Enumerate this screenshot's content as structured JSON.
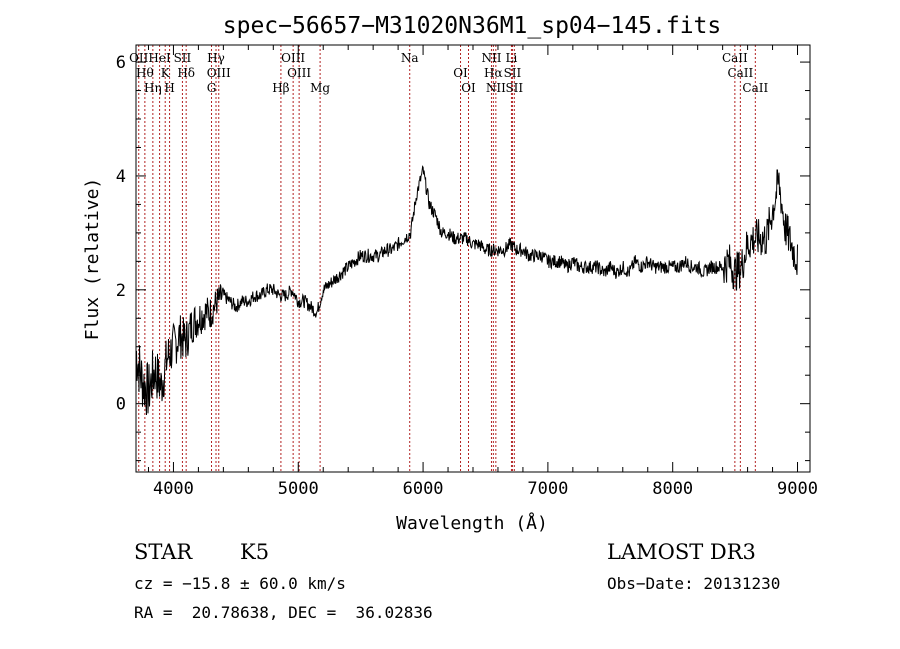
{
  "chart_data": {
    "type": "line",
    "title": "spec−56657−M31020N36M1_sp04−145.fits",
    "xlabel": "Wavelength (Å)",
    "ylabel": "Flux (relative)",
    "xlim": [
      3700,
      9100
    ],
    "ylim": [
      -1.2,
      6.3
    ],
    "xticks": [
      4000,
      5000,
      6000,
      7000,
      8000,
      9000
    ],
    "yticks": [
      0,
      2,
      4,
      6
    ],
    "grid": false,
    "series": [
      {
        "color": "#000000",
        "x": [
          3700,
          3750,
          3800,
          3850,
          3900,
          3950,
          4000,
          4050,
          4100,
          4150,
          4200,
          4250,
          4300,
          4350,
          4400,
          4450,
          4500,
          4550,
          4600,
          4650,
          4700,
          4750,
          4800,
          4850,
          4900,
          4950,
          5000,
          5050,
          5100,
          5150,
          5200,
          5250,
          5300,
          5350,
          5400,
          5450,
          5500,
          5550,
          5600,
          5650,
          5700,
          5750,
          5800,
          5850,
          5900,
          5950,
          6000,
          6050,
          6100,
          6150,
          6200,
          6250,
          6300,
          6350,
          6400,
          6450,
          6500,
          6550,
          6600,
          6650,
          6700,
          6750,
          6800,
          6850,
          6900,
          6950,
          7000,
          7050,
          7100,
          7150,
          7200,
          7250,
          7300,
          7350,
          7400,
          7450,
          7500,
          7550,
          7600,
          7650,
          7700,
          7750,
          7800,
          7850,
          7900,
          7950,
          8000,
          8050,
          8100,
          8150,
          8200,
          8250,
          8300,
          8350,
          8400,
          8450,
          8500,
          8550,
          8600,
          8650,
          8700,
          8750,
          8800,
          8850,
          8900,
          8950,
          9000
        ],
        "y": [
          0.9,
          0.4,
          0.2,
          0.6,
          0.3,
          0.8,
          1.0,
          1.2,
          1.1,
          1.4,
          1.5,
          1.6,
          1.6,
          1.8,
          1.9,
          1.8,
          1.7,
          1.8,
          1.8,
          1.9,
          1.9,
          2.0,
          2.0,
          1.9,
          1.9,
          2.0,
          1.8,
          1.8,
          1.7,
          1.6,
          2.0,
          2.1,
          2.2,
          2.3,
          2.4,
          2.5,
          2.6,
          2.6,
          2.6,
          2.6,
          2.7,
          2.7,
          2.8,
          2.9,
          3.0,
          3.7,
          4.1,
          3.5,
          3.3,
          3.0,
          3.0,
          2.9,
          2.9,
          2.9,
          2.8,
          2.8,
          2.7,
          2.7,
          2.7,
          2.7,
          2.8,
          2.7,
          2.7,
          2.6,
          2.6,
          2.6,
          2.5,
          2.5,
          2.5,
          2.4,
          2.5,
          2.4,
          2.4,
          2.4,
          2.4,
          2.3,
          2.4,
          2.3,
          2.4,
          2.3,
          2.5,
          2.4,
          2.5,
          2.4,
          2.4,
          2.4,
          2.4,
          2.4,
          2.5,
          2.4,
          2.4,
          2.3,
          2.4,
          2.4,
          2.4,
          2.5,
          2.3,
          2.4,
          2.8,
          2.9,
          2.9,
          2.9,
          3.4,
          3.9,
          3.1,
          2.8,
          2.5
        ]
      }
    ],
    "lines": [
      {
        "x": 3722,
        "label": "OII"
      },
      {
        "x": 3771,
        "label": "Hθ"
      },
      {
        "x": 3835,
        "label": "Hη"
      },
      {
        "x": 3889,
        "label": "HeI"
      },
      {
        "x": 3934,
        "label": "K"
      },
      {
        "x": 3969,
        "label": "H"
      },
      {
        "x": 4072,
        "label": "SII"
      },
      {
        "x": 4102,
        "label": "Hδ"
      },
      {
        "x": 4305,
        "label": "G"
      },
      {
        "x": 4341,
        "label": "Hγ"
      },
      {
        "x": 4363,
        "label": "OIII"
      },
      {
        "x": 4861,
        "label": "Hβ"
      },
      {
        "x": 4959,
        "label": "OIII"
      },
      {
        "x": 5007,
        "label": "OIII"
      },
      {
        "x": 5175,
        "label": "Mg"
      },
      {
        "x": 5893,
        "label": "Na"
      },
      {
        "x": 6300,
        "label": "OI"
      },
      {
        "x": 6364,
        "label": "OI"
      },
      {
        "x": 6548,
        "label": "NII"
      },
      {
        "x": 6563,
        "label": "Hα"
      },
      {
        "x": 6583,
        "label": "NII"
      },
      {
        "x": 6708,
        "label": "Li"
      },
      {
        "x": 6716,
        "label": "SII"
      },
      {
        "x": 6731,
        "label": "SII"
      },
      {
        "x": 8498,
        "label": "CaII"
      },
      {
        "x": 8542,
        "label": "CaII"
      },
      {
        "x": 8662,
        "label": "CaII"
      }
    ]
  },
  "info": {
    "class": "STAR",
    "subclass": "K5",
    "survey": "LAMOST DR3",
    "cz": "cz = −15.8 ± 60.0 km/s",
    "obs_date": "Obs−Date: 20131230",
    "coords": "RA =  20.78638, DEC =  36.02836"
  }
}
